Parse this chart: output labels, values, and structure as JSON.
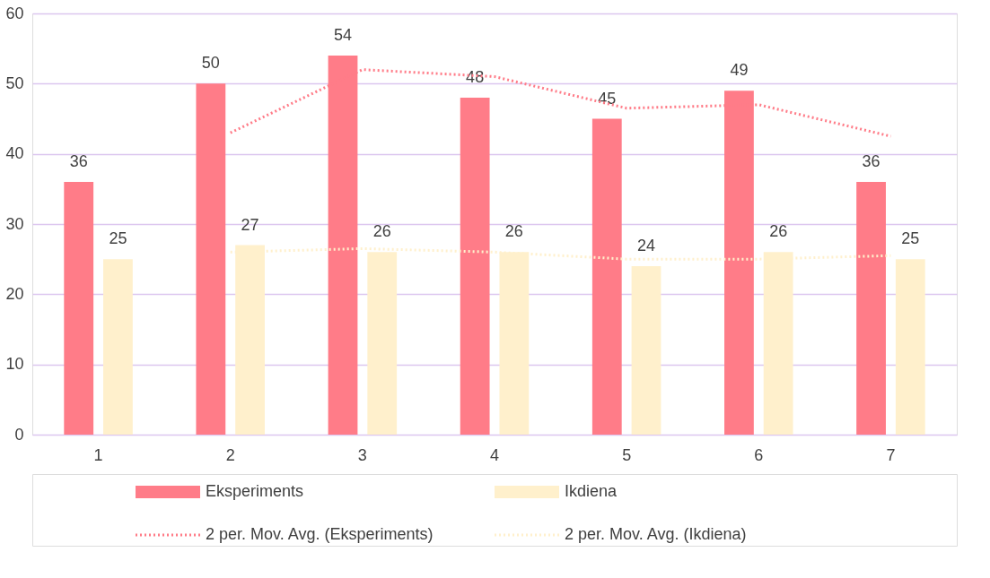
{
  "chart_data": {
    "type": "bar",
    "categories": [
      "1",
      "2",
      "3",
      "4",
      "5",
      "6",
      "7"
    ],
    "series": [
      {
        "name": "Eksperiments",
        "color": "#ff7c88",
        "values": [
          36,
          50,
          54,
          48,
          45,
          49,
          36
        ],
        "value_labels": [
          "36",
          "50",
          "54",
          "48",
          "45",
          "49",
          "36"
        ]
      },
      {
        "name": "Ikdiena",
        "color": "#fff0cc",
        "values": [
          25,
          27,
          26,
          26,
          24,
          26,
          25
        ],
        "value_labels": [
          "25",
          "27",
          "26",
          "26",
          "24",
          "26",
          "25"
        ]
      },
      {
        "name": "2 per. Mov. Avg. (Eksperiments)",
        "type": "line",
        "line_style": "dotted",
        "color": "#ff7c88",
        "x": [
          "2",
          "3",
          "4",
          "5",
          "6",
          "7"
        ],
        "values": [
          43,
          52,
          51,
          46.5,
          47,
          42.5
        ]
      },
      {
        "name": "2 per. Mov. Avg. (Ikdiena)",
        "type": "line",
        "line_style": "dotted",
        "color": "#fff0cc",
        "x": [
          "2",
          "3",
          "4",
          "5",
          "6",
          "7"
        ],
        "values": [
          26,
          26.5,
          26,
          25,
          25,
          25.5
        ]
      }
    ],
    "ylim": [
      0,
      60
    ],
    "yticks": [
      0,
      10,
      20,
      30,
      40,
      50,
      60
    ],
    "grid": "y",
    "legend": "bottom"
  }
}
